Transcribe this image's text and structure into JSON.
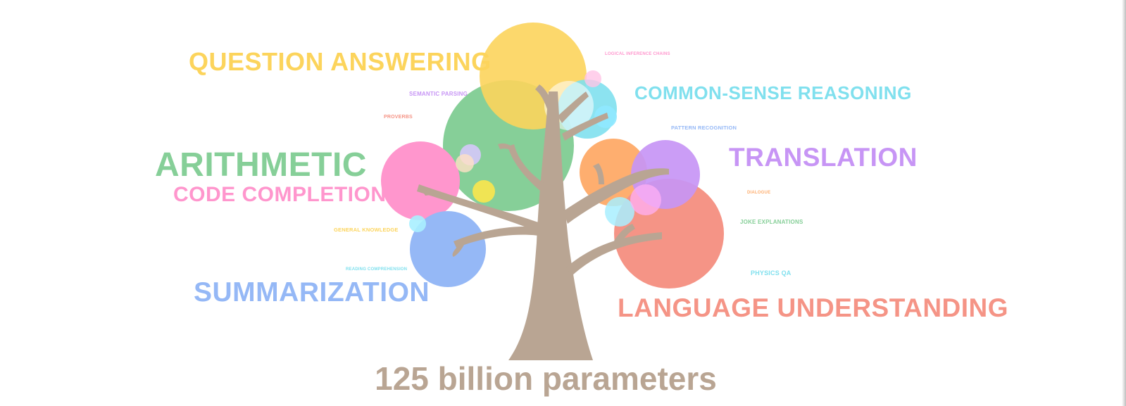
{
  "colors": {
    "trunk": "#b9a593",
    "yellow": "#fcd45c",
    "green": "#86cf98",
    "pink": "#ff96cd",
    "blue": "#95b8f6",
    "cyan": "#80e0ee",
    "orange": "#feae6f",
    "purple": "#c795f5",
    "red": "#f59486"
  },
  "labels": {
    "question_answering": "QUESTION ANSWERING",
    "common_sense_reasoning": "COMMON-SENSE REASONING",
    "arithmetic": "ARITHMETIC",
    "code_completion": "CODE COMPLETION",
    "translation": "TRANSLATION",
    "summarization": "SUMMARIZATION",
    "language_understanding": "LANGUAGE UNDERSTANDING",
    "logical_inference_chains": "LOGICAL INFERENCE CHAINS",
    "semantic_parsing": "SEMANTIC PARSING",
    "proverbs": "PROVERBS",
    "pattern_recognition": "PATTERN RECOGNITION",
    "dialogue": "DIALOGUE",
    "joke_explanations": "JOKE EXPLANATIONS",
    "general_knowledge": "GENERAL KNOWLEDGE",
    "reading_comprehension": "READING COMPREHENSION",
    "physics_qa": "PHYSICS QA"
  },
  "caption": "125 billion parameters"
}
